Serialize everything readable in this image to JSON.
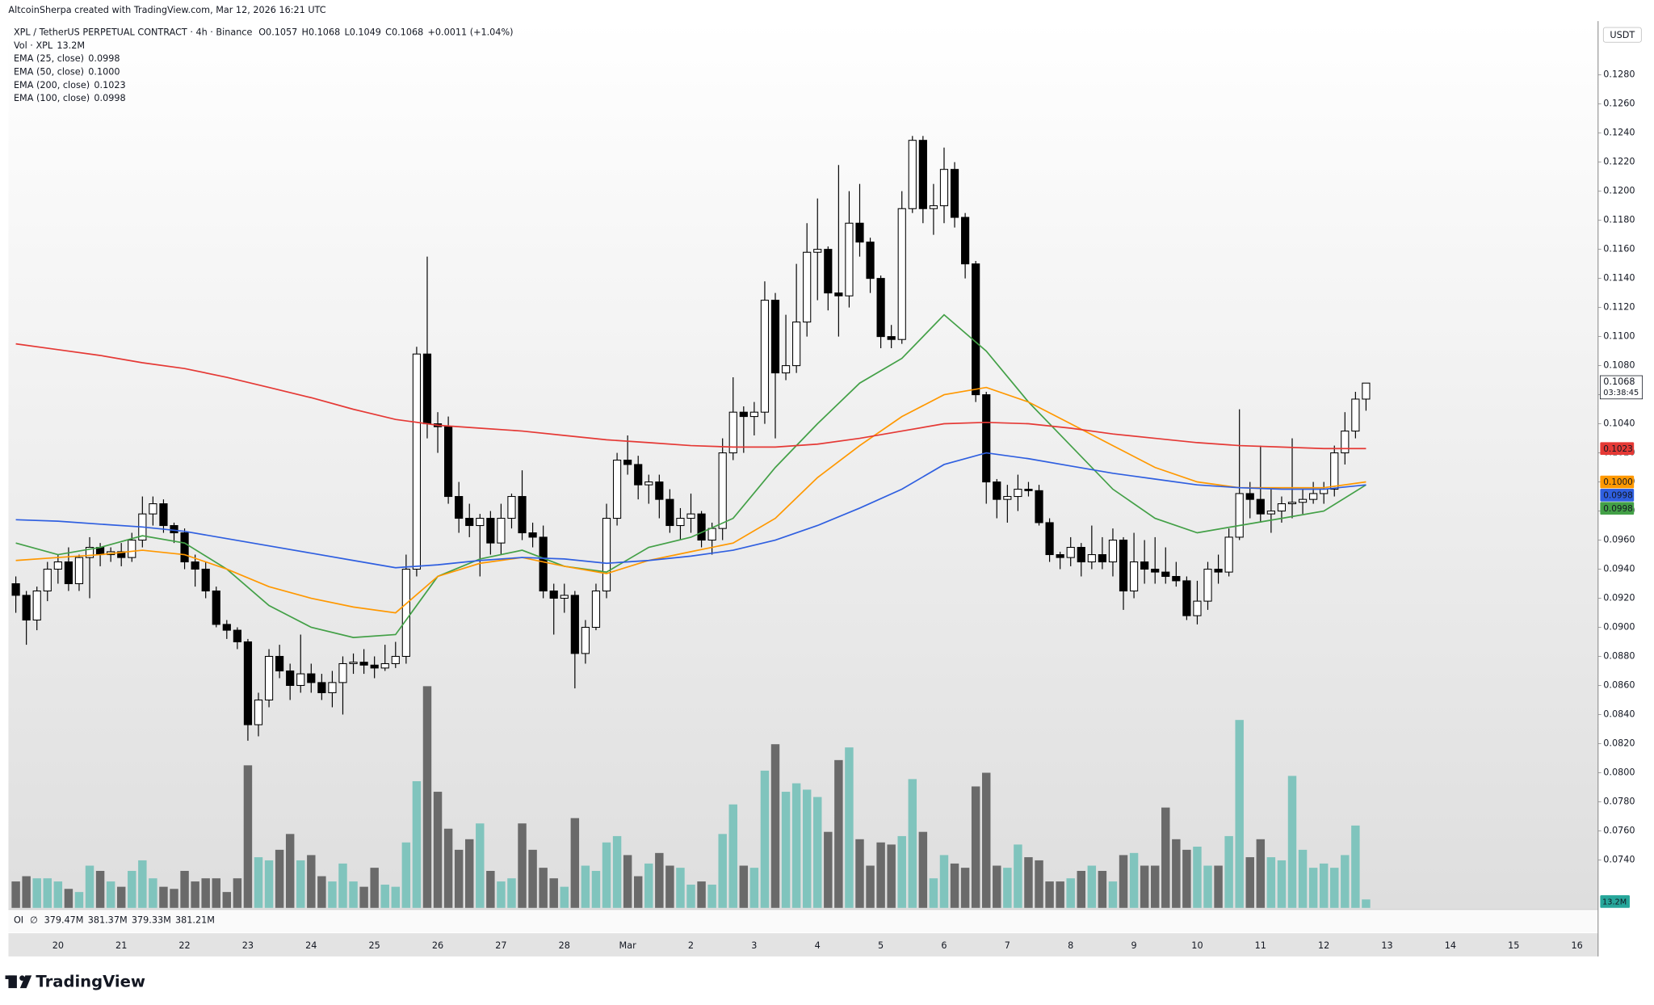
{
  "header": "AltcoinSherpa created with TradingView.com, Mar 12, 2026 16:21 UTC",
  "footer": "TradingView",
  "chart_data": {
    "type": "candlestick",
    "symbol": "XPL / TetherUS PERPETUAL CONTRACT · 4h · Binance",
    "ohlc": [
      "O0.1057",
      "H0.1068",
      "L0.1049",
      "C0.1068"
    ],
    "change": "+0.0011 (+1.04%)",
    "currency": "USDT",
    "price_label": "0.1068",
    "countdown": "03:38:45",
    "xtick_labels": [
      "20",
      "21",
      "22",
      "23",
      "24",
      "25",
      "26",
      "27",
      "28",
      "Mar",
      "2",
      "3",
      "4",
      "5",
      "6",
      "7",
      "8",
      "9",
      "10",
      "11",
      "12",
      "13",
      "14",
      "15",
      "16"
    ],
    "candles": {
      "open": [
        0.093,
        0.0922,
        0.0905,
        0.0925,
        0.094,
        0.0945,
        0.093,
        0.0948,
        0.0955,
        0.095,
        0.0952,
        0.0948,
        0.096,
        0.0978,
        0.0985,
        0.097,
        0.0965,
        0.0945,
        0.094,
        0.0925,
        0.0902,
        0.0898,
        0.089,
        0.0833,
        0.085,
        0.088,
        0.087,
        0.086,
        0.0868,
        0.0862,
        0.0855,
        0.0862,
        0.0875,
        0.0876,
        0.0874,
        0.0872,
        0.0875,
        0.088,
        0.094,
        0.1088,
        0.104,
        0.1038,
        0.099,
        0.0975,
        0.097,
        0.0975,
        0.0958,
        0.0975,
        0.099,
        0.0965,
        0.0962,
        0.0925,
        0.092,
        0.0922,
        0.0882,
        0.09,
        0.0925,
        0.0975,
        0.1015,
        0.1012,
        0.0998,
        0.1,
        0.0988,
        0.097,
        0.0975,
        0.0978,
        0.096,
        0.0968,
        0.102,
        0.1048,
        0.1045,
        0.1048,
        0.1125,
        0.1075,
        0.108,
        0.111,
        0.1158,
        0.116,
        0.113,
        0.1128,
        0.1178,
        0.1165,
        0.114,
        0.11,
        0.1098,
        0.1188,
        0.1235,
        0.1188,
        0.119,
        0.1215,
        0.1182,
        0.115,
        0.106,
        0.1,
        0.0988,
        0.099,
        0.0995,
        0.0994,
        0.0972,
        0.095,
        0.0948,
        0.0955,
        0.0945,
        0.095,
        0.0945,
        0.096,
        0.0925,
        0.0945,
        0.094,
        0.0938,
        0.0935,
        0.0932,
        0.0908,
        0.0918,
        0.094,
        0.0938,
        0.0962,
        0.0992,
        0.0988,
        0.0978,
        0.098,
        0.0985,
        0.0986,
        0.0988,
        0.0992,
        0.0995,
        0.102,
        0.1035,
        0.1057
      ],
      "high": [
        0.0935,
        0.0925,
        0.0928,
        0.0945,
        0.095,
        0.0955,
        0.095,
        0.0962,
        0.0958,
        0.0955,
        0.0958,
        0.0965,
        0.099,
        0.099,
        0.0988,
        0.0972,
        0.0968,
        0.095,
        0.0945,
        0.0928,
        0.0905,
        0.09,
        0.0892,
        0.0855,
        0.0885,
        0.0888,
        0.0875,
        0.0895,
        0.0875,
        0.0868,
        0.087,
        0.088,
        0.0882,
        0.0885,
        0.088,
        0.0888,
        0.089,
        0.095,
        0.1093,
        0.1155,
        0.1048,
        0.1045,
        0.1,
        0.0985,
        0.0978,
        0.098,
        0.0985,
        0.0992,
        0.1008,
        0.0972,
        0.097,
        0.093,
        0.093,
        0.0925,
        0.0905,
        0.093,
        0.0985,
        0.102,
        0.1032,
        0.1018,
        0.1005,
        0.1005,
        0.0995,
        0.0982,
        0.0992,
        0.098,
        0.0972,
        0.103,
        0.1072,
        0.1052,
        0.1055,
        0.1138,
        0.113,
        0.1115,
        0.115,
        0.1178,
        0.1195,
        0.1162,
        0.1218,
        0.12,
        0.1205,
        0.1168,
        0.1142,
        0.1108,
        0.12,
        0.1238,
        0.1238,
        0.1205,
        0.123,
        0.122,
        0.1185,
        0.1152,
        0.1062,
        0.1002,
        0.0998,
        0.1005,
        0.1,
        0.0998,
        0.0975,
        0.0952,
        0.0962,
        0.0958,
        0.097,
        0.0962,
        0.0968,
        0.0962,
        0.0965,
        0.096,
        0.0962,
        0.0955,
        0.0945,
        0.0935,
        0.0932,
        0.0945,
        0.095,
        0.0968,
        0.105,
        0.1,
        0.1025,
        0.0995,
        0.099,
        0.103,
        0.0995,
        0.1,
        0.1,
        0.1025,
        0.1048,
        0.1062,
        0.1068
      ],
      "low": [
        0.091,
        0.0888,
        0.0898,
        0.0918,
        0.093,
        0.0925,
        0.0925,
        0.092,
        0.0942,
        0.0945,
        0.0942,
        0.0945,
        0.0955,
        0.097,
        0.0965,
        0.0958,
        0.094,
        0.0928,
        0.092,
        0.09,
        0.0892,
        0.0885,
        0.0822,
        0.0825,
        0.0845,
        0.0865,
        0.085,
        0.0855,
        0.0855,
        0.085,
        0.0845,
        0.084,
        0.0868,
        0.0868,
        0.0865,
        0.087,
        0.0872,
        0.0875,
        0.0935,
        0.103,
        0.102,
        0.0985,
        0.0965,
        0.0962,
        0.0935,
        0.095,
        0.095,
        0.0968,
        0.096,
        0.0955,
        0.092,
        0.0895,
        0.091,
        0.0858,
        0.0875,
        0.0898,
        0.092,
        0.097,
        0.1005,
        0.0988,
        0.0985,
        0.0975,
        0.0965,
        0.096,
        0.0965,
        0.0955,
        0.095,
        0.096,
        0.1015,
        0.102,
        0.1032,
        0.104,
        0.103,
        0.107,
        0.1075,
        0.11,
        0.1125,
        0.1118,
        0.11,
        0.112,
        0.1155,
        0.113,
        0.1092,
        0.1092,
        0.1095,
        0.1185,
        0.1178,
        0.117,
        0.1178,
        0.1175,
        0.114,
        0.1055,
        0.0985,
        0.0975,
        0.0972,
        0.098,
        0.099,
        0.097,
        0.0945,
        0.094,
        0.0942,
        0.0935,
        0.094,
        0.094,
        0.0935,
        0.0912,
        0.092,
        0.093,
        0.093,
        0.093,
        0.0928,
        0.0905,
        0.0902,
        0.0912,
        0.093,
        0.0935,
        0.096,
        0.0975,
        0.0972,
        0.0965,
        0.0972,
        0.0975,
        0.0978,
        0.0985,
        0.0985,
        0.099,
        0.1012,
        0.103,
        0.1049
      ],
      "close": [
        0.0922,
        0.0905,
        0.0925,
        0.094,
        0.0945,
        0.093,
        0.0948,
        0.0955,
        0.095,
        0.0952,
        0.0948,
        0.096,
        0.0978,
        0.0985,
        0.097,
        0.0965,
        0.0945,
        0.094,
        0.0925,
        0.0902,
        0.0898,
        0.089,
        0.0833,
        0.085,
        0.088,
        0.087,
        0.086,
        0.0868,
        0.0862,
        0.0855,
        0.0862,
        0.0875,
        0.0876,
        0.0874,
        0.0872,
        0.0875,
        0.088,
        0.094,
        0.1088,
        0.104,
        0.1038,
        0.099,
        0.0975,
        0.097,
        0.0975,
        0.0958,
        0.0975,
        0.099,
        0.0965,
        0.0962,
        0.0925,
        0.092,
        0.0922,
        0.0882,
        0.09,
        0.0925,
        0.0975,
        0.1015,
        0.1012,
        0.0998,
        0.1,
        0.0988,
        0.097,
        0.0975,
        0.0978,
        0.096,
        0.0968,
        0.102,
        0.1048,
        0.1045,
        0.1048,
        0.1125,
        0.1075,
        0.108,
        0.111,
        0.1158,
        0.116,
        0.113,
        0.1128,
        0.1178,
        0.1165,
        0.114,
        0.11,
        0.1098,
        0.1188,
        0.1235,
        0.1188,
        0.119,
        0.1215,
        0.1182,
        0.115,
        0.106,
        0.1,
        0.0988,
        0.099,
        0.0995,
        0.0994,
        0.0972,
        0.095,
        0.0948,
        0.0955,
        0.0945,
        0.095,
        0.0945,
        0.096,
        0.0925,
        0.0945,
        0.094,
        0.0938,
        0.0935,
        0.0932,
        0.0908,
        0.0918,
        0.094,
        0.0938,
        0.0962,
        0.0992,
        0.0988,
        0.0978,
        0.098,
        0.0985,
        0.0986,
        0.0988,
        0.0992,
        0.0995,
        0.102,
        0.1035,
        0.1057,
        0.1068
      ]
    },
    "volume": {
      "name": "Vol · XPL",
      "value_label": "13.2M",
      "up_color": "#80c4bd",
      "down_color": "#6a6a6a",
      "values": [
        41.3,
        49.5,
        46.2,
        46.2,
        41.3,
        29.7,
        24.8,
        66,
        57.8,
        41.3,
        33,
        57.8,
        74.3,
        46.2,
        33,
        29.7,
        57.8,
        41.3,
        46.2,
        46.2,
        24.8,
        46.2,
        222.8,
        79.2,
        74.3,
        90.8,
        115.5,
        74.3,
        82.5,
        49.5,
        41.3,
        69.3,
        41.3,
        33,
        62.7,
        36.3,
        33,
        102.3,
        198,
        346.5,
        181.5,
        123.8,
        90.8,
        107.3,
        132,
        57.8,
        41.3,
        46.2,
        132,
        90.8,
        62.7,
        46.2,
        33,
        140.3,
        66,
        57.8,
        102.3,
        112.2,
        82.5,
        49.5,
        69.3,
        85.8,
        66,
        62.7,
        36.3,
        41.3,
        36.3,
        115.5,
        161.7,
        66,
        62.7,
        214.5,
        255.8,
        181.5,
        194.7,
        184.8,
        173.3,
        118.8,
        231,
        250.8,
        107.3,
        66,
        102.3,
        99,
        112.2,
        201.3,
        118.8,
        46.2,
        82.5,
        69.3,
        62.7,
        189.8,
        211.2,
        66,
        62.7,
        99,
        79.2,
        74.3,
        41.3,
        41.3,
        46.2,
        57.8,
        66,
        57.8,
        41.3,
        82.5,
        85.8,
        66,
        66,
        156.8,
        107.3,
        90.8,
        95.7,
        66,
        66,
        112.2,
        293.7,
        79.2,
        107.3,
        79.2,
        74.3,
        206.3,
        90.8,
        62.7,
        69.3,
        62.7,
        82.5,
        128.7,
        13.2
      ]
    },
    "series": [
      {
        "name": "EMA (25, close)",
        "color": "#43a047",
        "value_label": "0.0998",
        "x": [
          0,
          4,
          8,
          12,
          16,
          20,
          24,
          28,
          32,
          36,
          40,
          44,
          48,
          52,
          56,
          60,
          64,
          68,
          72,
          76,
          80,
          84,
          88,
          92,
          96,
          100,
          104,
          108,
          112,
          116,
          120,
          124,
          128
        ],
        "values": [
          0.0958,
          0.095,
          0.0955,
          0.0963,
          0.0958,
          0.094,
          0.0915,
          0.09,
          0.0893,
          0.0895,
          0.0935,
          0.0947,
          0.0953,
          0.0942,
          0.0938,
          0.0955,
          0.0962,
          0.0975,
          0.101,
          0.104,
          0.1068,
          0.1085,
          0.1115,
          0.109,
          0.1055,
          0.1025,
          0.0995,
          0.0975,
          0.0965,
          0.097,
          0.0975,
          0.098,
          0.0998
        ]
      },
      {
        "name": "EMA (50, close)",
        "color": "#ff9800",
        "value_label": "0.1000",
        "x": [
          0,
          4,
          8,
          12,
          16,
          20,
          24,
          28,
          32,
          36,
          40,
          44,
          48,
          52,
          56,
          60,
          64,
          68,
          72,
          76,
          80,
          84,
          88,
          92,
          96,
          100,
          104,
          108,
          112,
          116,
          120,
          124,
          128
        ],
        "values": [
          0.0946,
          0.0948,
          0.095,
          0.0953,
          0.095,
          0.094,
          0.0928,
          0.092,
          0.0914,
          0.091,
          0.0935,
          0.0944,
          0.0948,
          0.0942,
          0.0937,
          0.0946,
          0.0952,
          0.0958,
          0.0975,
          0.1003,
          0.1025,
          0.1045,
          0.106,
          0.1065,
          0.1055,
          0.104,
          0.1025,
          0.101,
          0.1,
          0.0996,
          0.0996,
          0.0996,
          0.1
        ]
      },
      {
        "name": "EMA (200, close)",
        "color": "#e53935",
        "value_label": "0.1023",
        "x": [
          0,
          4,
          8,
          12,
          16,
          20,
          24,
          28,
          32,
          36,
          40,
          44,
          48,
          52,
          56,
          60,
          64,
          68,
          72,
          76,
          80,
          84,
          88,
          92,
          96,
          100,
          104,
          108,
          112,
          116,
          120,
          124,
          128
        ],
        "values": [
          0.1095,
          0.1091,
          0.1087,
          0.1082,
          0.1078,
          0.1072,
          0.1065,
          0.1058,
          0.105,
          0.1043,
          0.1039,
          0.1037,
          0.1035,
          0.1032,
          0.1029,
          0.1027,
          0.1025,
          0.1024,
          0.1024,
          0.1026,
          0.103,
          0.1035,
          0.104,
          0.1041,
          0.104,
          0.1037,
          0.1033,
          0.103,
          0.1027,
          0.1025,
          0.1024,
          0.1023,
          0.1023
        ]
      },
      {
        "name": "EMA (100, close)",
        "color": "#2f5fe0",
        "value_label": "0.0998",
        "x": [
          0,
          4,
          8,
          12,
          16,
          20,
          24,
          28,
          32,
          36,
          40,
          44,
          48,
          52,
          56,
          60,
          64,
          68,
          72,
          76,
          80,
          84,
          88,
          92,
          96,
          100,
          104,
          108,
          112,
          116,
          120,
          124,
          128
        ],
        "values": [
          0.0974,
          0.0973,
          0.0971,
          0.0969,
          0.0966,
          0.0961,
          0.0956,
          0.0951,
          0.0946,
          0.0941,
          0.0943,
          0.0946,
          0.0948,
          0.0947,
          0.0944,
          0.0946,
          0.0949,
          0.0953,
          0.096,
          0.097,
          0.0982,
          0.0995,
          0.1012,
          0.102,
          0.1016,
          0.1011,
          0.1006,
          0.1002,
          0.0998,
          0.0996,
          0.0995,
          0.0995,
          0.0998
        ]
      }
    ],
    "oi": {
      "label": "OI",
      "icon": "∅",
      "values": [
        "379.47M",
        "381.37M",
        "379.33M",
        "381.21M"
      ]
    },
    "ylim": [
      0.0707,
      0.1317
    ],
    "yticks": [
      {
        "value": 0.074,
        "label": "0.0740"
      },
      {
        "value": 0.076,
        "label": "0.0760"
      },
      {
        "value": 0.078,
        "label": "0.0780"
      },
      {
        "value": 0.08,
        "label": "0.0800"
      },
      {
        "value": 0.082,
        "label": "0.0820"
      },
      {
        "value": 0.084,
        "label": "0.0840"
      },
      {
        "value": 0.086,
        "label": "0.0860"
      },
      {
        "value": 0.088,
        "label": "0.0880"
      },
      {
        "value": 0.09,
        "label": "0.0900"
      },
      {
        "value": 0.092,
        "label": "0.0920"
      },
      {
        "value": 0.094,
        "label": "0.0940"
      },
      {
        "value": 0.096,
        "label": "0.0960"
      },
      {
        "value": 0.098,
        "label": "0.0980"
      },
      {
        "value": 0.1,
        "label": "0.1000"
      },
      {
        "value": 0.102,
        "label": "0.1020"
      },
      {
        "value": 0.104,
        "label": "0.1040"
      },
      {
        "value": 0.106,
        "label": "0.1060"
      },
      {
        "value": 0.108,
        "label": "0.1080"
      },
      {
        "value": 0.11,
        "label": "0.1100"
      },
      {
        "value": 0.112,
        "label": "0.1120"
      },
      {
        "value": 0.114,
        "label": "0.1140"
      },
      {
        "value": 0.116,
        "label": "0.1160"
      },
      {
        "value": 0.118,
        "label": "0.1180"
      },
      {
        "value": 0.12,
        "label": "0.1200"
      },
      {
        "value": 0.122,
        "label": "0.1220"
      },
      {
        "value": 0.124,
        "label": "0.1240"
      },
      {
        "value": 0.126,
        "label": "0.1260"
      },
      {
        "value": 0.128,
        "label": "0.1280"
      }
    ],
    "grid": false
  }
}
